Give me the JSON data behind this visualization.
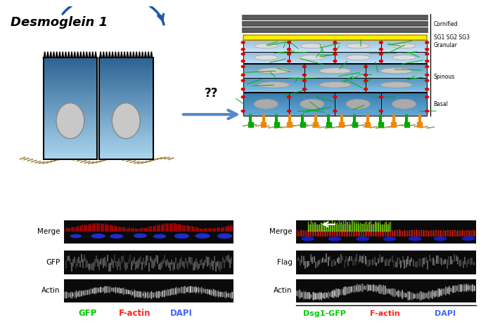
{
  "desmoglein_label": "Desmoglein 1",
  "question_marks": "??",
  "left_labels": [
    "Merge",
    "GFP",
    "Actin"
  ],
  "right_labels": [
    "Merge",
    "Flag",
    "Actin"
  ],
  "left_legend": [
    [
      "GFP",
      "#00cc00"
    ],
    [
      "F-actin",
      "#ff2222"
    ],
    [
      "DAPI",
      "#4466ff"
    ]
  ],
  "right_legend": [
    [
      "Dsg1-GFP",
      "#00cc00"
    ],
    [
      "F-actin",
      "#ff2222"
    ],
    [
      "DAPI",
      "#4466ff"
    ]
  ],
  "bg_color": "#ffffff",
  "arrow_color": "#2255aa",
  "cell_light": "#a8d4ee",
  "cell_dark": "#2a6090",
  "nucleus_fill": "#c8c8c8",
  "nucleus_edge": "#888888",
  "membrane_color": "#8B6914",
  "cornified_color": "#888888",
  "yellow_bar": "#ffee00",
  "sg_color": "#b0d8f0",
  "spinous_color": "#80c0e8",
  "basal_color": "#60a8d8",
  "red_dot": "#dd0000",
  "green_fiber": "#00aa00",
  "orange_pin": "#ee8800",
  "green_pin": "#00aa00"
}
